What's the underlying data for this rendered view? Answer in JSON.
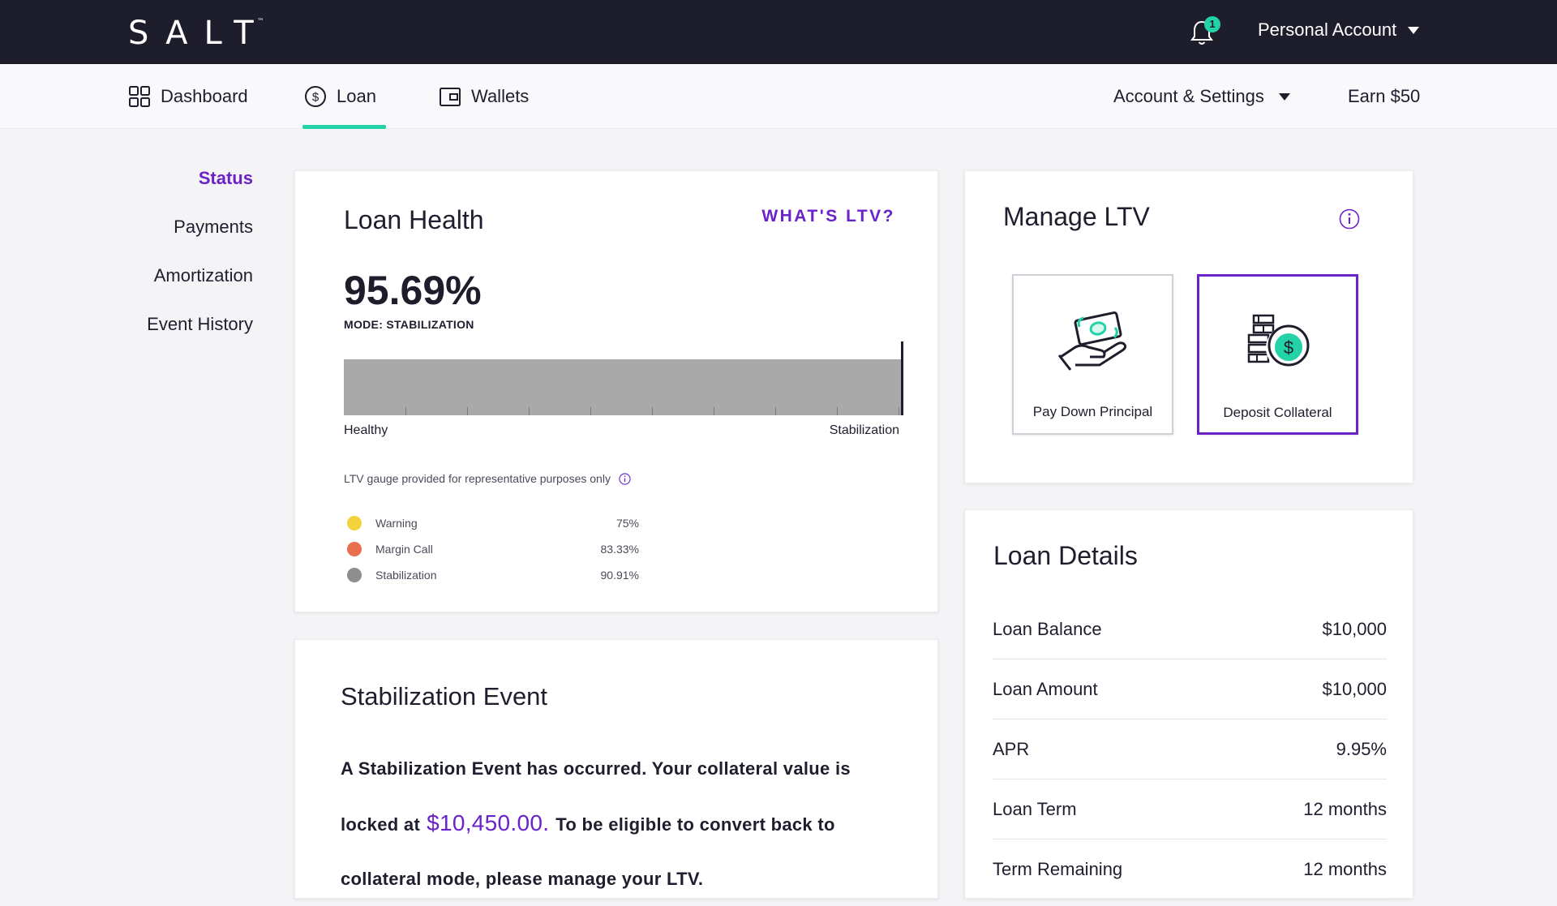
{
  "brand": {
    "logo_text": "SALT",
    "trademark": "™"
  },
  "topbar": {
    "notification_count": "1",
    "account_label": "Personal Account"
  },
  "nav": {
    "tabs": [
      {
        "label": "Dashboard",
        "icon": "grid-icon"
      },
      {
        "label": "Loan",
        "icon": "dollar-circle-icon",
        "active": true
      },
      {
        "label": "Wallets",
        "icon": "wallet-icon"
      }
    ],
    "account_settings": "Account & Settings",
    "earn": "Earn $50"
  },
  "sidebar": {
    "items": [
      {
        "label": "Status",
        "active": true
      },
      {
        "label": "Payments"
      },
      {
        "label": "Amortization"
      },
      {
        "label": "Event History"
      }
    ]
  },
  "loan_health": {
    "title": "Loan Health",
    "whats_ltv": "WHAT'S LTV?",
    "ltv_value": "95.69%",
    "mode": "MODE: STABILIZATION",
    "gauge_min_label": "Healthy",
    "gauge_max_label": "Stabilization",
    "gauge_level": 0.9569,
    "disclaimer": "LTV gauge provided for representative purposes only",
    "legend": [
      {
        "label": "Warning",
        "value": "75%",
        "color": "#f4d23c"
      },
      {
        "label": "Margin Call",
        "value": "83.33%",
        "color": "#e8704e"
      },
      {
        "label": "Stabilization",
        "value": "90.91%",
        "color": "#8e8e8e"
      }
    ]
  },
  "stabilization": {
    "title": "Stabilization Event",
    "text_before": "A Stabilization Event has occurred. Your collateral value is locked at",
    "amount": "$10,450.00.",
    "text_after": "To be eligible to convert back to collateral mode, please manage your LTV."
  },
  "manage_ltv": {
    "title": "Manage LTV",
    "actions": [
      {
        "label": "Pay Down Principal",
        "icon": "hand-cash-icon"
      },
      {
        "label": "Deposit Collateral",
        "icon": "coin-stack-icon",
        "selected": true
      }
    ]
  },
  "loan_details": {
    "title": "Loan Details",
    "rows": [
      {
        "label": "Loan Balance",
        "value": "$10,000"
      },
      {
        "label": "Loan Amount",
        "value": "$10,000"
      },
      {
        "label": "APR",
        "value": "9.95%"
      },
      {
        "label": "Loan Term",
        "value": "12 months"
      },
      {
        "label": "Term Remaining",
        "value": "12 months"
      }
    ]
  },
  "colors": {
    "accent": "#6a22c9",
    "teal": "#23d2a6",
    "header": "#1d1d2c"
  }
}
